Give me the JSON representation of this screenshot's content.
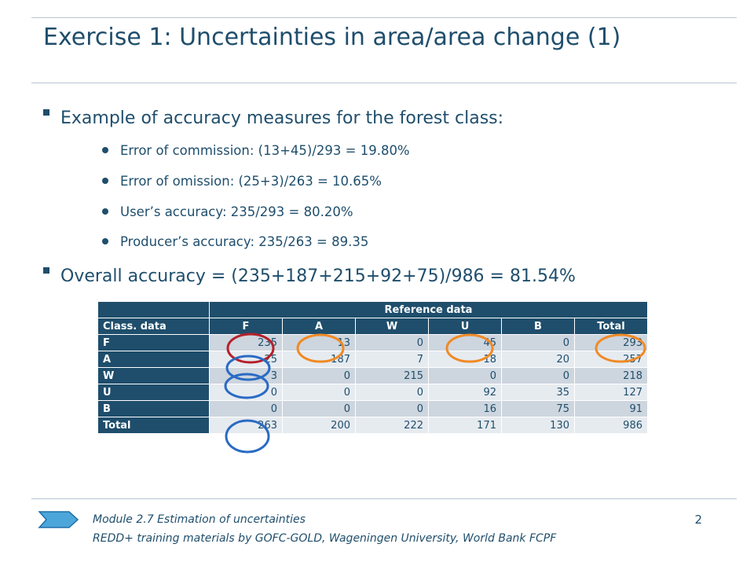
{
  "title": "Exercise 1: Uncertainties in area/area change (1)",
  "bullets": {
    "main1": "Example of accuracy measures for the forest class:",
    "sub": [
      "Error of commission: (13+45)/293 = 19.80%",
      "Error of omission: (25+3)/263 = 10.65%",
      "User’s accuracy: 235/293 = 80.20%",
      "Producer’s accuracy: 235/263 = 89.35"
    ],
    "main2": "Overall accuracy = (235+187+215+92+75)/986 = 81.54%"
  },
  "table": {
    "reference_header": "Reference data",
    "corner": "Class. data",
    "columns": [
      "F",
      "A",
      "W",
      "U",
      "B",
      "Total"
    ],
    "rows": [
      {
        "label": "F",
        "values": [
          "235",
          "13",
          "0",
          "45",
          "0",
          "293"
        ]
      },
      {
        "label": "A",
        "values": [
          "25",
          "187",
          "7",
          "18",
          "20",
          "257"
        ]
      },
      {
        "label": "W",
        "values": [
          "3",
          "0",
          "215",
          "0",
          "0",
          "218"
        ]
      },
      {
        "label": "U",
        "values": [
          "0",
          "0",
          "0",
          "92",
          "35",
          "127"
        ]
      },
      {
        "label": "B",
        "values": [
          "0",
          "0",
          "0",
          "16",
          "75",
          "91"
        ]
      },
      {
        "label": "Total",
        "values": [
          "263",
          "200",
          "222",
          "171",
          "130",
          "986"
        ]
      }
    ]
  },
  "highlight_colors": {
    "red": "#b5202a",
    "orange": "#f08a24",
    "blue": "#2a6bc4"
  },
  "footer": {
    "module": "Module 2.7 Estimation of uncertainties",
    "credit": "REDD+ training materials by GOFC-GOLD, Wageningen University, World Bank FCPF",
    "page": "2"
  }
}
